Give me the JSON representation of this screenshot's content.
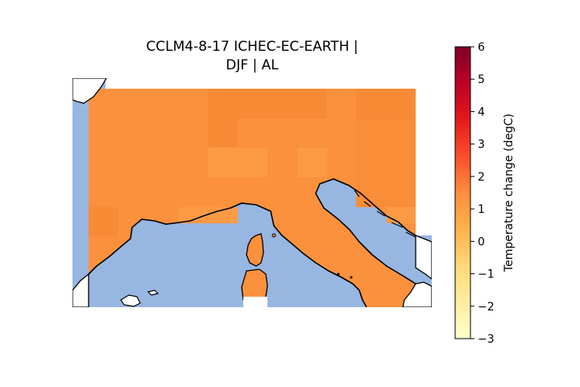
{
  "title": {
    "line1": "CCLM4-8-17 ICHEC-EC-EARTH |",
    "line2": "DJF | AL"
  },
  "map": {
    "description_colors": {
      "sea": "#97b6e1",
      "land_base": "#fb913d",
      "land_light": "#fc9a44",
      "land_dark": "#f88a36",
      "coastline": "#000000",
      "background": "#ffffff"
    }
  },
  "colorbar": {
    "label": "Temperature change (degC)",
    "min": -3,
    "max": 6,
    "ticks": [
      "6",
      "5",
      "4",
      "3",
      "2",
      "1",
      "0",
      "−1",
      "−2",
      "−3"
    ],
    "colormap": "YlOrRd",
    "stops": [
      "#ffffcc",
      "#ffeda0",
      "#fed976",
      "#feb24c",
      "#fd8d3c",
      "#fc4e2a",
      "#e31a1c",
      "#bd0026",
      "#800026"
    ]
  }
}
